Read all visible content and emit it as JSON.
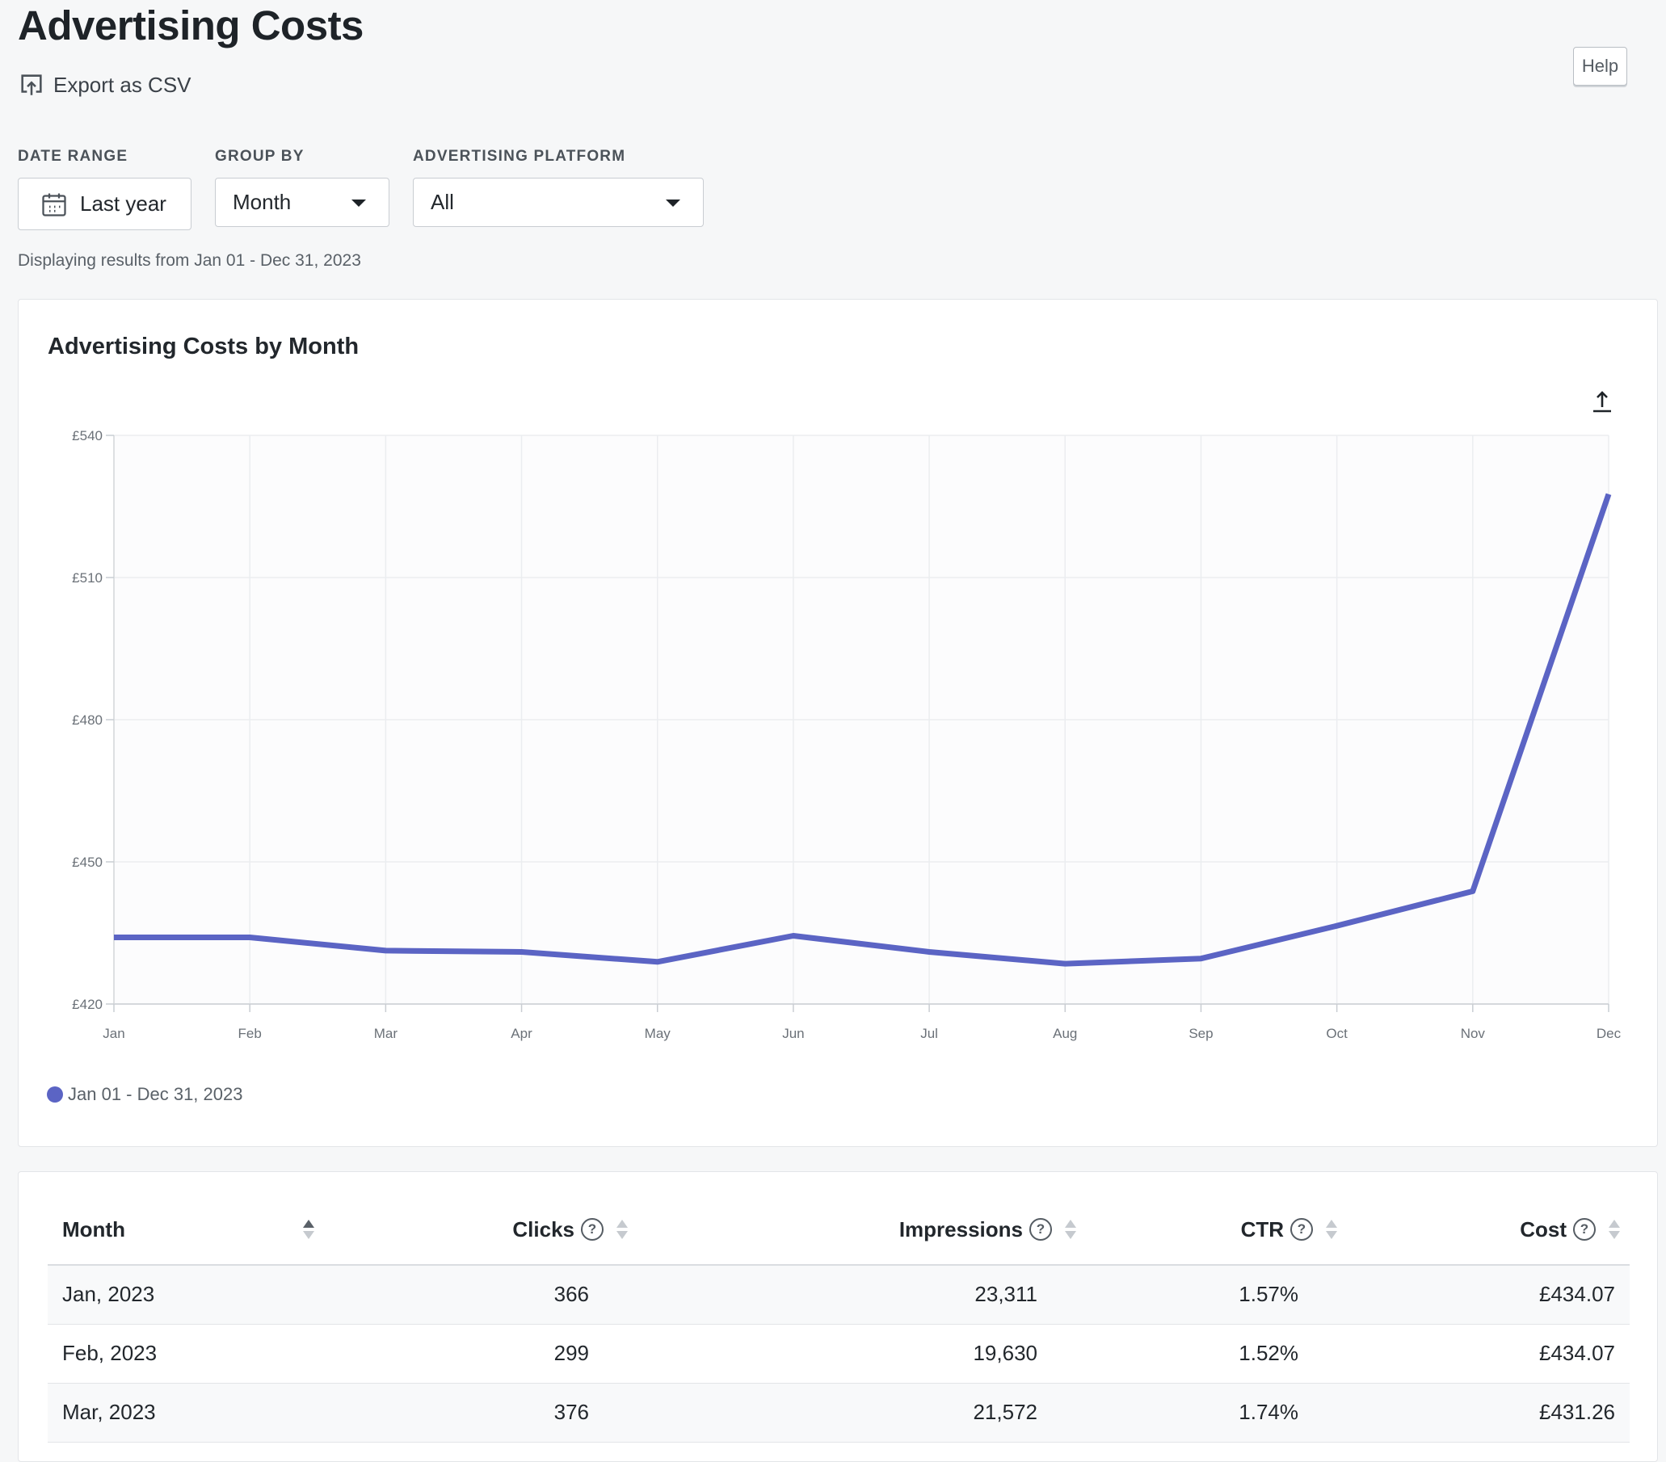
{
  "header": {
    "title": "Advertising Costs",
    "export_label": "Export as CSV",
    "help_label": "Help"
  },
  "filters": {
    "date_range": {
      "label": "DATE RANGE",
      "value": "Last year"
    },
    "group_by": {
      "label": "GROUP BY",
      "value": "Month"
    },
    "platform": {
      "label": "ADVERTISING PLATFORM",
      "value": "All"
    },
    "range_note": "Displaying results from Jan 01 - Dec 31, 2023"
  },
  "chart": {
    "title": "Advertising Costs by Month",
    "legend_label": "Jan 01 - Dec 31, 2023",
    "line_color": "#5b64c4",
    "export_icon": "upload-arrow-icon"
  },
  "chart_data": {
    "type": "line",
    "title": "Advertising Costs by Month",
    "categories": [
      "Jan",
      "Feb",
      "Mar",
      "Apr",
      "May",
      "Jun",
      "Jul",
      "Aug",
      "Sep",
      "Oct",
      "Nov",
      "Dec"
    ],
    "series": [
      {
        "name": "Jan 01 - Dec 31, 2023",
        "values": [
          434.07,
          434.07,
          431.26,
          431.0,
          428.9,
          434.4,
          431.0,
          428.5,
          429.6,
          436.5,
          443.8,
          527.6
        ]
      }
    ],
    "yticks": [
      420,
      450,
      480,
      510,
      540
    ],
    "ytick_labels": [
      "£420",
      "£450",
      "£480",
      "£510",
      "£540"
    ],
    "ylim": [
      420,
      540
    ],
    "grid": true,
    "legend_position": "bottom-left"
  },
  "table": {
    "columns": [
      {
        "label": "Month",
        "help": false
      },
      {
        "label": "Clicks",
        "help": true
      },
      {
        "label": "Impressions",
        "help": true
      },
      {
        "label": "CTR",
        "help": true
      },
      {
        "label": "Cost",
        "help": true
      }
    ],
    "rows": [
      {
        "month": "Jan, 2023",
        "clicks": "366",
        "impressions": "23,311",
        "ctr": "1.57%",
        "cost": "£434.07"
      },
      {
        "month": "Feb, 2023",
        "clicks": "299",
        "impressions": "19,630",
        "ctr": "1.52%",
        "cost": "£434.07"
      },
      {
        "month": "Mar, 2023",
        "clicks": "376",
        "impressions": "21,572",
        "ctr": "1.74%",
        "cost": "£431.26"
      }
    ]
  }
}
